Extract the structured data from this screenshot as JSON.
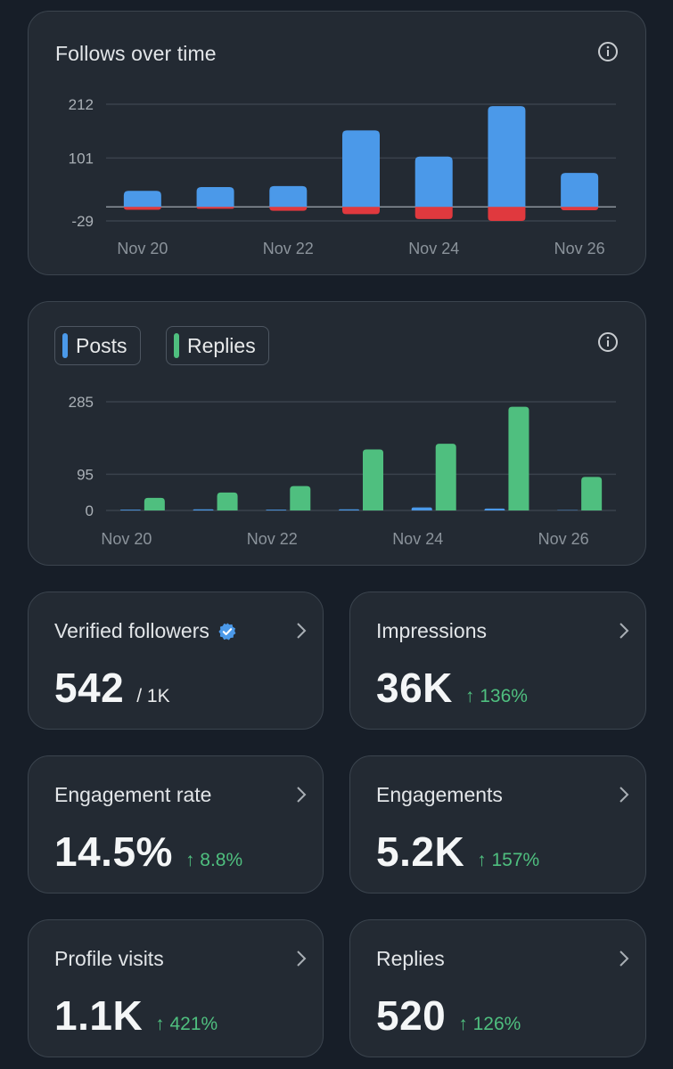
{
  "follows_chart": {
    "title": "Follows over time",
    "info_icon": "info-icon",
    "y_ticks": [
      "212",
      "101",
      "-29"
    ],
    "x_ticks": [
      "Nov 20",
      "Nov 22",
      "Nov 24",
      "Nov 26"
    ],
    "colors": {
      "gained": "#4b99e9",
      "lost": "#e0393e"
    }
  },
  "posts_chart": {
    "legend": [
      {
        "label": "Posts",
        "color": "#4b99e9"
      },
      {
        "label": "Replies",
        "color": "#4fbf7f"
      }
    ],
    "info_icon": "info-icon",
    "y_ticks": [
      "285",
      "95",
      "0"
    ],
    "x_ticks": [
      "Nov 20",
      "Nov 22",
      "Nov 24",
      "Nov 26"
    ]
  },
  "chart_data": [
    {
      "type": "bar",
      "title": "Follows over time",
      "categories": [
        "Nov 20",
        "Nov 21",
        "Nov 22",
        "Nov 23",
        "Nov 24",
        "Nov 25",
        "Nov 26"
      ],
      "ylim": [
        -29,
        212
      ],
      "series": [
        {
          "values": [
            33,
            41,
            43,
            158,
            104,
            208,
            70
          ]
        },
        {
          "values": [
            -6,
            -4,
            -8,
            -15,
            -25,
            -29,
            -7
          ]
        }
      ]
    },
    {
      "type": "bar",
      "categories": [
        "Nov 20",
        "Nov 21",
        "Nov 22",
        "Nov 23",
        "Nov 24",
        "Nov 25",
        "Nov 26"
      ],
      "ylim": [
        0,
        285
      ],
      "series": [
        {
          "name": "Posts",
          "values": [
            2,
            3,
            2,
            3,
            8,
            5,
            1
          ]
        },
        {
          "name": "Replies",
          "values": [
            33,
            47,
            64,
            160,
            175,
            272,
            88
          ]
        }
      ]
    }
  ],
  "stats": [
    {
      "label": "Verified followers",
      "value": "542",
      "goal": "/ 1K",
      "verified_icon": "verified-badge-icon"
    },
    {
      "label": "Impressions",
      "value": "36K",
      "delta": "↑ 136%"
    },
    {
      "label": "Engagement rate",
      "value": "14.5%",
      "delta": "↑ 8.8%"
    },
    {
      "label": "Engagements",
      "value": "5.2K",
      "delta": "↑ 157%"
    },
    {
      "label": "Profile visits",
      "value": "1.1K",
      "delta": "↑ 421%"
    },
    {
      "label": "Replies",
      "value": "520",
      "delta": "↑ 126%"
    }
  ],
  "colors": {
    "delta_up": "#4fbf7f",
    "verified": "#4b99e9"
  }
}
